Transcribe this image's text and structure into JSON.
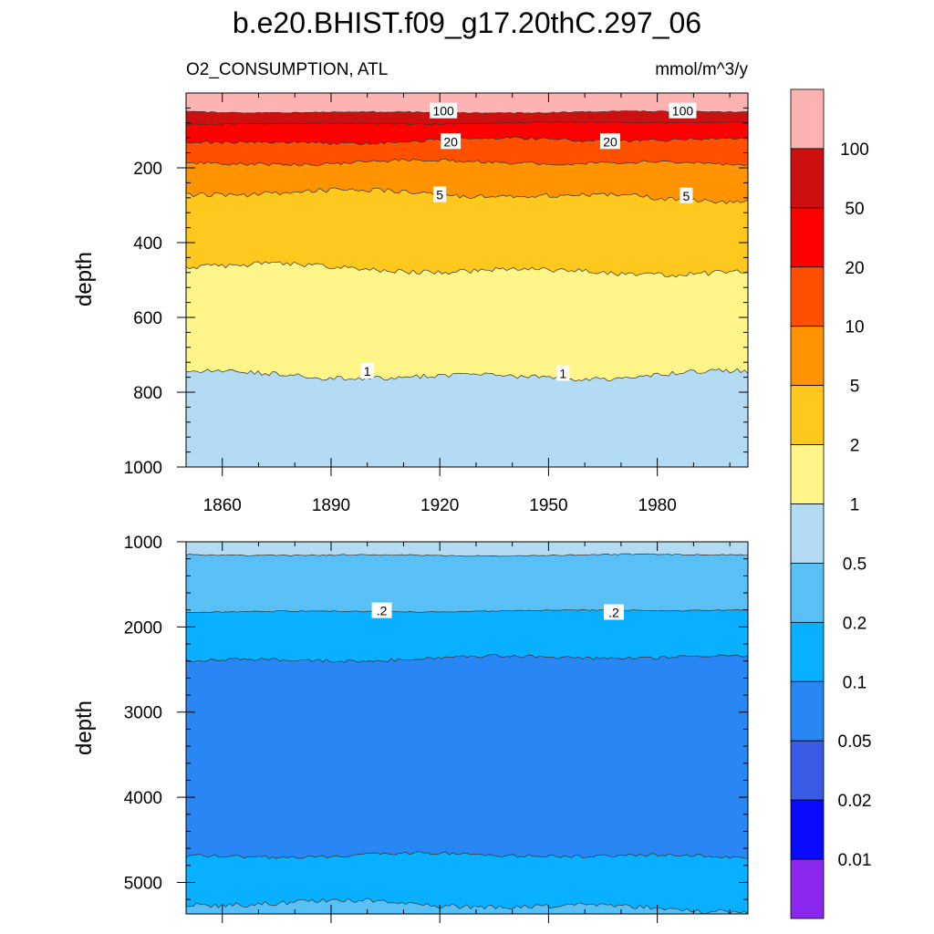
{
  "chart_data": {
    "type": "contour",
    "title": "b.e20.BHIST.f09_g17.20thC.297_06",
    "subtitle_left": "O2_CONSUMPTION, ATL",
    "subtitle_right": "mmol/m^3/y",
    "ylabel": "depth",
    "xlim": [
      1850,
      2005
    ],
    "x_ticks": [
      "1860",
      "1890",
      "1920",
      "1950",
      "1980"
    ],
    "panels": [
      {
        "name": "upper",
        "ylim": [
          0,
          1000
        ],
        "y_ticks": [
          "200",
          "400",
          "600",
          "800",
          "1000"
        ],
        "band_colors": [
          "#FFB2B2",
          "#CC1010",
          "#FF0000",
          "#FF5000",
          "#FF9400",
          "#FFC81E",
          "#FFF588",
          "#B3DCF4"
        ],
        "boundaries": [
          50,
          80,
          130,
          190,
          275,
          470,
          750
        ],
        "contour_labels": [
          {
            "text": "100",
            "x": 1921,
            "y": 48
          },
          {
            "text": "100",
            "x": 1987,
            "y": 48
          },
          {
            "text": "20",
            "x": 1923,
            "y": 130
          },
          {
            "text": "20",
            "x": 1967,
            "y": 130
          },
          {
            "text": "5",
            "x": 1920,
            "y": 272
          },
          {
            "text": "5",
            "x": 1988,
            "y": 275
          },
          {
            "text": "1",
            "x": 1900,
            "y": 744
          },
          {
            "text": "1",
            "x": 1954,
            "y": 750
          }
        ]
      },
      {
        "name": "lower",
        "ylim": [
          1000,
          5370
        ],
        "y_ticks": [
          "1000",
          "2000",
          "3000",
          "4000",
          "5000"
        ],
        "band_colors": [
          "#B3DCF4",
          "#58C0F4",
          "#08B0FF",
          "#2886F5",
          "#08B0FF",
          "#58C0F4"
        ],
        "boundaries": [
          1150,
          1810,
          2380,
          4700,
          5280
        ],
        "contour_labels": [
          {
            "text": ".2",
            "x": 1904,
            "y": 1810
          },
          {
            "text": ".2",
            "x": 1968,
            "y": 1830
          }
        ]
      }
    ],
    "colorbar": {
      "colors": [
        "#FFB2B2",
        "#CC1010",
        "#FF0000",
        "#FF5000",
        "#FF9400",
        "#FFC81E",
        "#FFF588",
        "#B3DCF4",
        "#58C0F4",
        "#08B0FF",
        "#2886F5",
        "#3A5BE6",
        "#0A0AFF",
        "#8A28F0"
      ],
      "labels": [
        "100",
        "50",
        "20",
        "10",
        "5",
        "2",
        "1",
        "0.5",
        "0.2",
        "0.1",
        "0.05",
        "0.02",
        "0.01"
      ]
    }
  }
}
